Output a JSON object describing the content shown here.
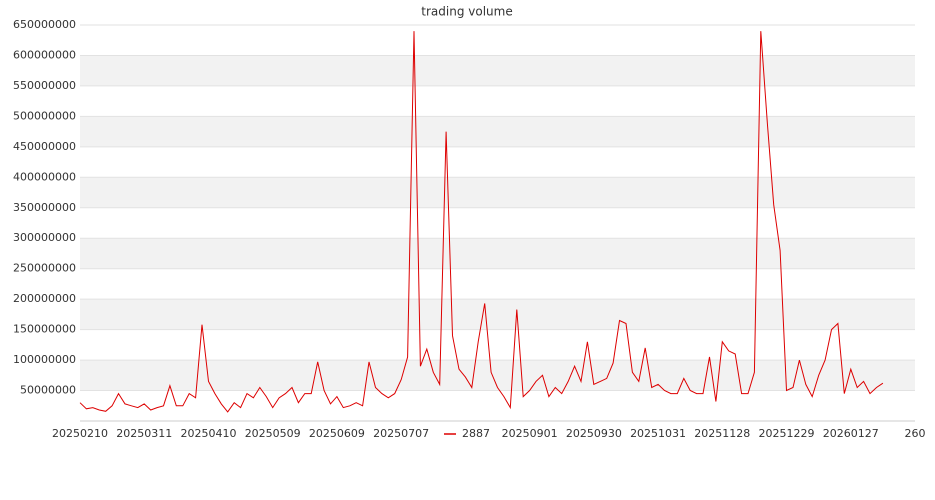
{
  "chart_data": {
    "type": "line",
    "title": "trading volume",
    "categories": [
      "20250210",
      null,
      null,
      null,
      null,
      null,
      null,
      null,
      null,
      null,
      "20250311",
      null,
      null,
      null,
      null,
      null,
      null,
      null,
      null,
      null,
      "20250410",
      null,
      null,
      null,
      null,
      null,
      null,
      null,
      null,
      null,
      "20250509",
      null,
      null,
      null,
      null,
      null,
      null,
      null,
      null,
      null,
      "20250609",
      null,
      null,
      null,
      null,
      null,
      null,
      null,
      null,
      null,
      "20250707",
      null,
      null,
      null,
      null,
      null,
      null,
      null,
      null,
      null,
      null,
      null,
      null,
      null,
      null,
      null,
      null,
      null,
      null,
      null,
      "20250901",
      null,
      null,
      null,
      null,
      null,
      null,
      null,
      null,
      null,
      "20250930",
      null,
      null,
      null,
      null,
      null,
      null,
      null,
      null,
      null,
      "20251031",
      null,
      null,
      null,
      null,
      null,
      null,
      null,
      null,
      null,
      "20251128",
      null,
      null,
      null,
      null,
      null,
      null,
      null,
      null,
      null,
      "20251229",
      null,
      null,
      null,
      null,
      null,
      null,
      null,
      null,
      null,
      "20260127",
      null,
      null,
      null,
      null,
      null,
      null,
      null,
      null,
      null,
      "260"
    ],
    "series": [
      {
        "name": "2887",
        "color": "#dd0000",
        "values": [
          30000000,
          20000000,
          22000000,
          18000000,
          16000000,
          25000000,
          45000000,
          28000000,
          25000000,
          22000000,
          28000000,
          18000000,
          22000000,
          25000000,
          58000000,
          25000000,
          25000000,
          45000000,
          38000000,
          158000000,
          65000000,
          45000000,
          28000000,
          15000000,
          30000000,
          22000000,
          45000000,
          38000000,
          55000000,
          40000000,
          22000000,
          38000000,
          45000000,
          55000000,
          30000000,
          45000000,
          45000000,
          97000000,
          50000000,
          28000000,
          40000000,
          22000000,
          25000000,
          30000000,
          25000000,
          97000000,
          55000000,
          45000000,
          38000000,
          45000000,
          68000000,
          105000000,
          640000000,
          90000000,
          118000000,
          80000000,
          60000000,
          475000000,
          140000000,
          85000000,
          72000000,
          55000000,
          130000000,
          193000000,
          80000000,
          55000000,
          40000000,
          22000000,
          183000000,
          40000000,
          50000000,
          65000000,
          75000000,
          40000000,
          55000000,
          45000000,
          65000000,
          90000000,
          65000000,
          130000000,
          60000000,
          65000000,
          70000000,
          95000000,
          165000000,
          160000000,
          80000000,
          65000000,
          120000000,
          55000000,
          60000000,
          50000000,
          45000000,
          45000000,
          70000000,
          50000000,
          45000000,
          45000000,
          105000000,
          32000000,
          130000000,
          115000000,
          110000000,
          45000000,
          45000000,
          80000000,
          640000000,
          490000000,
          355000000,
          280000000,
          50000000,
          55000000,
          100000000,
          60000000,
          40000000,
          75000000,
          100000000,
          150000000,
          160000000,
          45000000,
          85000000,
          55000000,
          65000000,
          45000000,
          55000000,
          62000000,
          null,
          null,
          null,
          null,
          null
        ]
      }
    ],
    "ylim": [
      0,
      650000000
    ],
    "yticks": [
      50000000,
      100000000,
      150000000,
      200000000,
      250000000,
      300000000,
      350000000,
      400000000,
      450000000,
      500000000,
      550000000,
      600000000,
      650000000
    ],
    "grid": true
  }
}
